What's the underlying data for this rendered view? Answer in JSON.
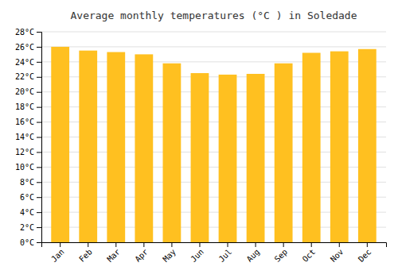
{
  "chart_data": {
    "type": "bar",
    "title": "Average monthly temperatures (°C ) in Soledade",
    "categories": [
      "Jan",
      "Feb",
      "Mar",
      "Apr",
      "May",
      "Jun",
      "Jul",
      "Aug",
      "Sep",
      "Oct",
      "Nov",
      "Dec"
    ],
    "values": [
      26.0,
      25.5,
      25.3,
      25.0,
      23.8,
      22.5,
      22.3,
      22.4,
      23.8,
      25.2,
      25.4,
      25.7
    ],
    "color": "#FFC020",
    "ylim": [
      0,
      28
    ],
    "yticks": [
      {
        "value": 0,
        "label": "0°C"
      },
      {
        "value": 2,
        "label": "2°C"
      },
      {
        "value": 4,
        "label": "4°C"
      },
      {
        "value": 6,
        "label": "6°C"
      },
      {
        "value": 8,
        "label": "8°C"
      },
      {
        "value": 10,
        "label": "10°C"
      },
      {
        "value": 12,
        "label": "12°C"
      },
      {
        "value": 14,
        "label": "14°C"
      },
      {
        "value": 16,
        "label": "16°C"
      },
      {
        "value": 18,
        "label": "18°C"
      },
      {
        "value": 20,
        "label": "20°C"
      },
      {
        "value": 22,
        "label": "22°C"
      },
      {
        "value": 24,
        "label": "24°C"
      },
      {
        "value": 26,
        "label": "26°C"
      },
      {
        "value": 28,
        "label": "28°C"
      }
    ],
    "grid": true
  }
}
